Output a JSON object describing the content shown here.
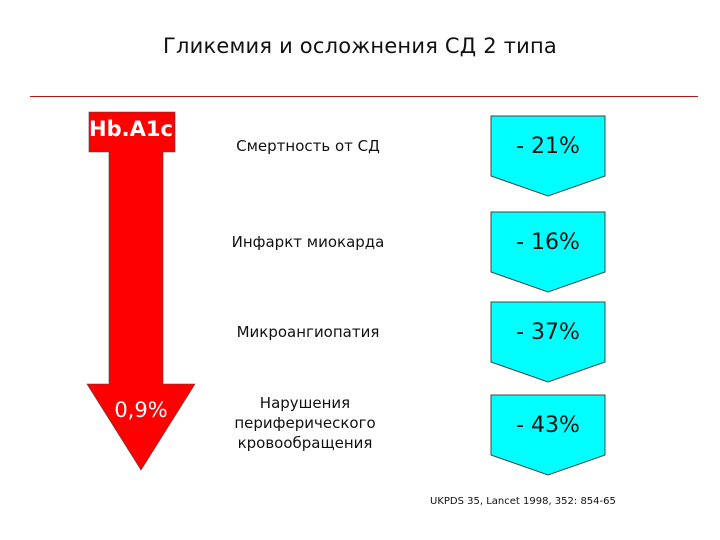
{
  "title": "Гликемия и осложнения СД 2 типа",
  "colors": {
    "arrow": "#ff0000",
    "badge": "#00ffff",
    "rule": "#b01818"
  },
  "arrow": {
    "top_label": "Hb.A1c",
    "bottom_label": "0,9%"
  },
  "rows": [
    {
      "label": "Смертность от СД",
      "value": "- 21%"
    },
    {
      "label": "Инфаркт миокарда",
      "value": "- 16%"
    },
    {
      "label": "Микроангиопатия",
      "value": "- 37%"
    },
    {
      "label": "Нарушения периферического кровообращения",
      "value": "- 43%"
    }
  ],
  "source": "UKPDS 35, Lancet 1998, 352: 854-65"
}
